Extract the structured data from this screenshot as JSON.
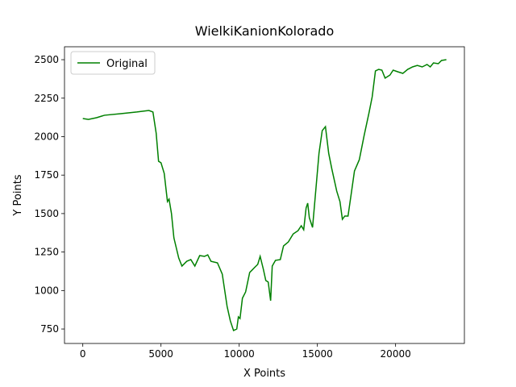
{
  "chart_data": {
    "type": "line",
    "title": "WielkiKanionKolorado",
    "x_label": "X Points",
    "y_label": "Y Points",
    "x": [
      0,
      360,
      876,
      1392,
      2423,
      3454,
      4227,
      4485,
      4691,
      4845,
      5000,
      5206,
      5412,
      5515,
      5670,
      5825,
      6134,
      6340,
      6649,
      6907,
      7165,
      7474,
      7784,
      7990,
      8196,
      8608,
      8918,
      9227,
      9433,
      9639,
      9845,
      9948,
      10052,
      10206,
      10412,
      10670,
      10825,
      10979,
      11186,
      11340,
      11546,
      11701,
      11856,
      12010,
      12113,
      12320,
      12629,
      12835,
      13144,
      13454,
      13763,
      13969,
      14124,
      14278,
      14381,
      14485,
      14691,
      14845,
      15103,
      15309,
      15515,
      15722,
      15928,
      16237,
      16443,
      16598,
      16753,
      16959,
      17165,
      17371,
      17680,
      17990,
      18299,
      18505,
      18711,
      18917,
      19124,
      19330,
      19639,
      19845,
      20155,
      20464,
      20773,
      21082,
      21392,
      21701,
      22010,
      22216,
      22423,
      22732,
      22938,
      23247
    ],
    "series": [
      {
        "name": "Original",
        "color": "#008000",
        "values": [
          2118,
          2112,
          2123,
          2139,
          2149,
          2160,
          2170,
          2160,
          2023,
          1840,
          1830,
          1761,
          1578,
          1594,
          1500,
          1342,
          1211,
          1159,
          1190,
          1201,
          1159,
          1227,
          1222,
          1232,
          1190,
          1180,
          1107,
          897,
          803,
          740,
          750,
          829,
          818,
          950,
          991,
          1117,
          1133,
          1149,
          1170,
          1222,
          1138,
          1065,
          1055,
          934,
          1159,
          1196,
          1201,
          1290,
          1316,
          1368,
          1389,
          1421,
          1395,
          1536,
          1568,
          1473,
          1410,
          1589,
          1892,
          2039,
          2065,
          1892,
          1788,
          1646,
          1578,
          1463,
          1484,
          1484,
          1630,
          1777,
          1850,
          2008,
          2154,
          2259,
          2427,
          2437,
          2432,
          2380,
          2400,
          2432,
          2421,
          2411,
          2437,
          2453,
          2463,
          2453,
          2469,
          2453,
          2479,
          2474,
          2495,
          2500
        ]
      }
    ],
    "xlim": [
      -1170,
      24400
    ],
    "ylim": [
      656,
      2584
    ],
    "xticks": [
      0,
      5000,
      10000,
      15000,
      20000
    ],
    "yticks": [
      750,
      1000,
      1250,
      1500,
      1750,
      2000,
      2250,
      2500
    ],
    "legend": "upper left",
    "grid": false
  }
}
